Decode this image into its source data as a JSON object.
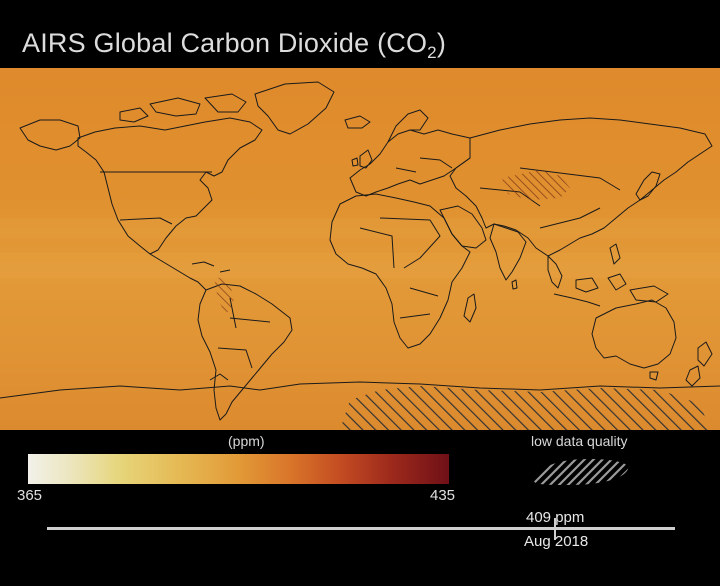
{
  "title": {
    "text": "AIRS Global Carbon Dioxide",
    "formula_prefix": "(CO",
    "formula_sub": "2",
    "formula_suffix": ")"
  },
  "legend": {
    "unit": "(ppm)",
    "min": "365",
    "max": "435",
    "low_quality_label": "low data quality",
    "colors": [
      "#f2f1ea",
      "#e6d57a",
      "#e29a37",
      "#c44d22",
      "#6f1017"
    ]
  },
  "timeline": {
    "current_value": "409 ppm",
    "current_date": "Aug 2018"
  },
  "map": {
    "base_color": "#dc8a2e",
    "coastline_color": "#1a1a1a"
  }
}
